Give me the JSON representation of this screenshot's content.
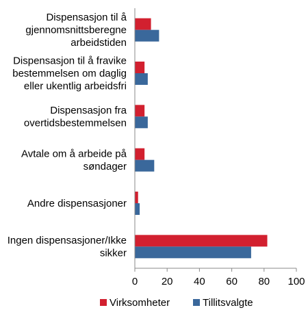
{
  "chart_data": {
    "type": "bar",
    "orientation": "horizontal",
    "categories": [
      [
        "Dispensasjon til å",
        "gjennomsnittsberegne",
        "arbeidstiden"
      ],
      [
        "Dispensasjon til å fravike",
        "bestemmelsen om daglig",
        "eller ukentlig arbeidsfri"
      ],
      [
        "Dispensasjon fra",
        "overtidsbestemmelsen"
      ],
      [
        "Avtale om å arbeide på",
        "søndager"
      ],
      [
        "Andre dispensasjoner"
      ],
      [
        "Ingen dispensasjoner/Ikke",
        "sikker"
      ]
    ],
    "series": [
      {
        "name": "Virksomheter",
        "color": "#d2202f",
        "values": [
          10,
          6,
          6,
          6,
          2,
          82
        ]
      },
      {
        "name": "Tillitsvalgte",
        "color": "#3a689b",
        "values": [
          15,
          8,
          8,
          12,
          3,
          72
        ]
      }
    ],
    "xlim": [
      0,
      100
    ],
    "xticks": [
      "0",
      "20",
      "40",
      "60",
      "80",
      "100"
    ],
    "grid": false,
    "legend": "bottom"
  }
}
